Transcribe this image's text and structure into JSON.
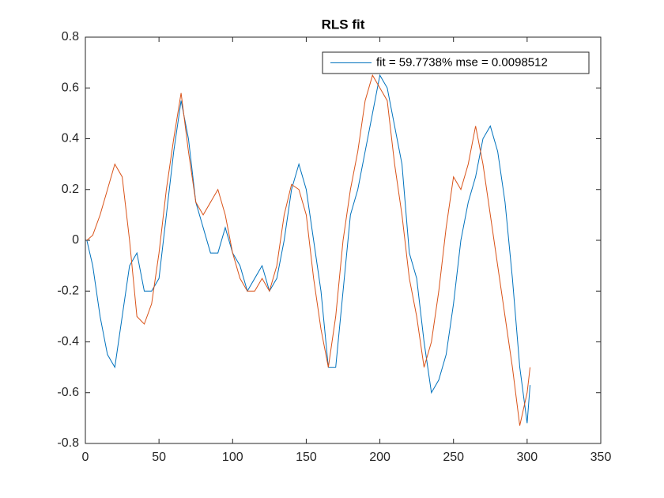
{
  "chart_data": {
    "type": "line",
    "title": "RLS fit",
    "x": [
      1,
      5,
      10,
      15,
      20,
      25,
      30,
      35,
      40,
      45,
      50,
      55,
      60,
      65,
      70,
      75,
      80,
      85,
      90,
      95,
      100,
      105,
      110,
      115,
      120,
      125,
      130,
      135,
      140,
      145,
      150,
      155,
      160,
      165,
      170,
      175,
      180,
      185,
      190,
      195,
      200,
      205,
      210,
      215,
      220,
      225,
      230,
      235,
      240,
      245,
      250,
      255,
      260,
      265,
      270,
      275,
      280,
      285,
      290,
      295,
      300,
      302
    ],
    "series": [
      {
        "name": "fit = 59.7738% mse = 0.0098512",
        "color": "#0072bd",
        "values": [
          0,
          -0.1,
          -0.3,
          -0.45,
          -0.5,
          -0.3,
          -0.1,
          -0.05,
          -0.2,
          -0.2,
          -0.15,
          0.1,
          0.35,
          0.55,
          0.4,
          0.15,
          0.05,
          -0.05,
          -0.05,
          0.05,
          -0.05,
          -0.1,
          -0.2,
          -0.15,
          -0.1,
          -0.2,
          -0.15,
          0,
          0.2,
          0.3,
          0.2,
          0,
          -0.2,
          -0.5,
          -0.5,
          -0.2,
          0.1,
          0.2,
          0.35,
          0.5,
          0.65,
          0.6,
          0.45,
          0.3,
          -0.05,
          -0.15,
          -0.4,
          -0.6,
          -0.55,
          -0.45,
          -0.25,
          0,
          0.15,
          0.25,
          0.4,
          0.45,
          0.35,
          0.15,
          -0.15,
          -0.5,
          -0.72,
          -0.57
        ]
      },
      {
        "color": "#d95319",
        "values": [
          0,
          0.02,
          0.1,
          0.2,
          0.3,
          0.25,
          0,
          -0.3,
          -0.33,
          -0.25,
          -0.05,
          0.2,
          0.4,
          0.58,
          0.35,
          0.15,
          0.1,
          0.15,
          0.2,
          0.1,
          -0.05,
          -0.15,
          -0.2,
          -0.2,
          -0.15,
          -0.2,
          -0.1,
          0.1,
          0.22,
          0.2,
          0.1,
          -0.15,
          -0.35,
          -0.5,
          -0.3,
          0,
          0.2,
          0.35,
          0.55,
          0.65,
          0.6,
          0.55,
          0.3,
          0.1,
          -0.15,
          -0.3,
          -0.5,
          -0.4,
          -0.2,
          0.05,
          0.25,
          0.2,
          0.3,
          0.45,
          0.3,
          0.1,
          -0.1,
          -0.3,
          -0.5,
          -0.73,
          -0.6,
          -0.5
        ]
      }
    ],
    "xlim": [
      0,
      350
    ],
    "xticks": [
      0,
      50,
      100,
      150,
      200,
      250,
      300,
      350
    ],
    "ylim": [
      -0.8,
      0.8
    ],
    "yticks": [
      -0.8,
      -0.6,
      -0.4,
      -0.2,
      0,
      0.2,
      0.4,
      0.6,
      0.8
    ],
    "legend": "northeast"
  }
}
